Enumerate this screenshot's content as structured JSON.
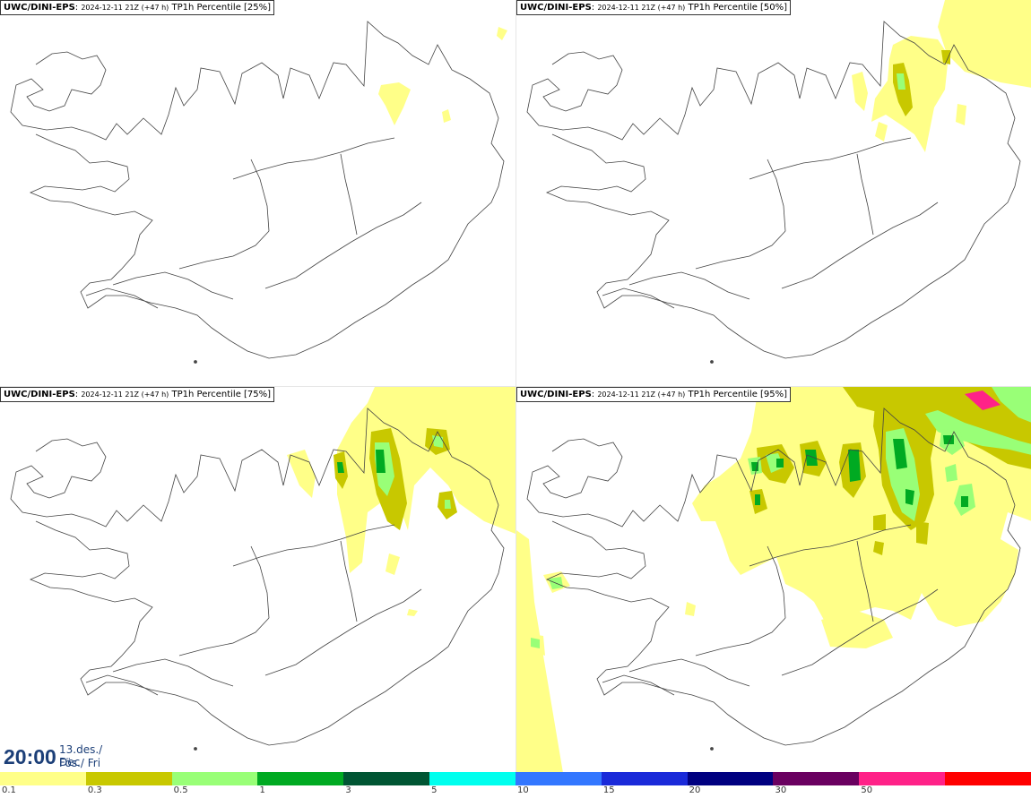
{
  "panels": [
    {
      "model": "UWC/DINI-EPS",
      "run": "2024-12-11 21Z (+47 h)",
      "description": "TP1h Percentile [25%]"
    },
    {
      "model": "UWC/DINI-EPS",
      "run": "2024-12-11 21Z (+47 h)",
      "description": "TP1h Percentile [50%]"
    },
    {
      "model": "UWC/DINI-EPS",
      "run": "2024-12-11 21Z (+47 h)",
      "description": "TP1h Percentile [75%]"
    },
    {
      "model": "UWC/DINI-EPS",
      "run": "2024-12-11 21Z (+47 h)",
      "description": "TP1h Percentile [95%]"
    }
  ],
  "valid_time": {
    "clock": "20:00",
    "date_line1": "13.des./ Dec",
    "date_line2": "Fös./ Fri"
  },
  "colorbar": {
    "colors": [
      "#ffff88",
      "#c8c800",
      "#99ff77",
      "#00aa22",
      "#005533",
      "#00ffee",
      "#3377ff",
      "#1a2ad9",
      "#000080",
      "#6a0060",
      "#ff2288",
      "#ff0000"
    ],
    "ticks": [
      "0.1",
      "0.3",
      "0.5",
      "1",
      "3",
      "5",
      "10",
      "15",
      "20",
      "30",
      "50"
    ]
  }
}
